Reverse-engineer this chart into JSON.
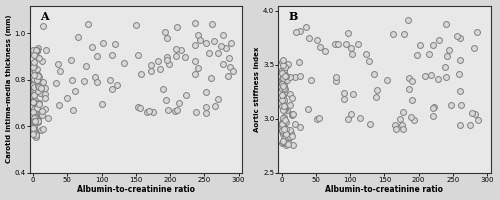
{
  "fig_width": 5.0,
  "fig_height": 2.0,
  "dpi": 100,
  "background_color": "#d8d8d8",
  "plot_background_color": "#e8e8e8",
  "marker": "o",
  "marker_size": 18,
  "marker_facecolor": "#d8d8d8",
  "marker_edgecolor": "#808080",
  "marker_linewidth": 0.7,
  "marker_alpha": 1.0,
  "panel_A": {
    "label": "A",
    "xlabel": "Albumin-to-creatinine ratio",
    "ylabel": "Carotid intima-media thickness (mm)",
    "xlim": [
      -5,
      305
    ],
    "ylim": [
      0.4,
      1.12
    ],
    "xticks": [
      0,
      50,
      100,
      150,
      200,
      250,
      300
    ],
    "yticks": [
      0.4,
      0.6,
      0.8,
      1.0
    ],
    "seed": 42,
    "n_clustered": 80,
    "n_spread": 80
  },
  "panel_B": {
    "label": "B",
    "xlabel": "Albumin-to-creatinine ratio",
    "ylabel": "Aortic stiffness index",
    "xlim": [
      -5,
      305
    ],
    "ylim": [
      2.5,
      4.05
    ],
    "xticks": [
      0,
      50,
      100,
      150,
      200,
      250,
      300
    ],
    "yticks": [
      2.5,
      3.0,
      3.5,
      4.0
    ],
    "seed": 7,
    "n_clustered": 80,
    "n_spread": 80
  }
}
